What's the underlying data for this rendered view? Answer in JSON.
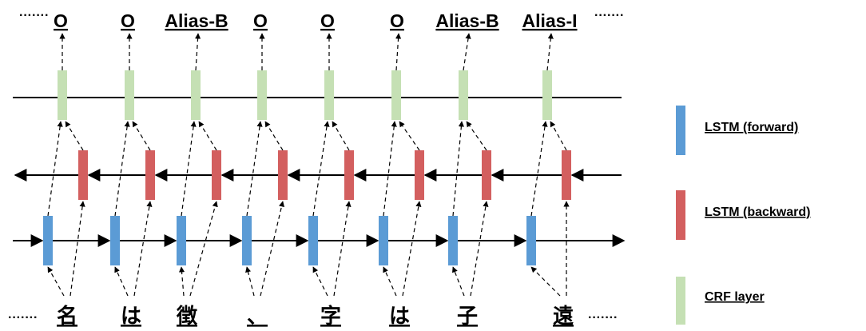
{
  "colors": {
    "forward": "#5b9bd5",
    "backward": "#d35f5f",
    "crf": "#c5e0b4",
    "line": "#000000"
  },
  "ellipsis": "·······",
  "outputs": [
    "O",
    "O",
    "Alias-B",
    "O",
    "O",
    "O",
    "Alias-B",
    "Alias-I"
  ],
  "inputs": [
    "名",
    "は",
    "徴",
    "、",
    "字",
    "は",
    "子",
    "遠"
  ],
  "legend": [
    {
      "label": "LSTM (forward)",
      "color": "forward"
    },
    {
      "label": "LSTM (backward)",
      "color": "backward"
    },
    {
      "label": "CRF layer",
      "color": "crf"
    }
  ]
}
